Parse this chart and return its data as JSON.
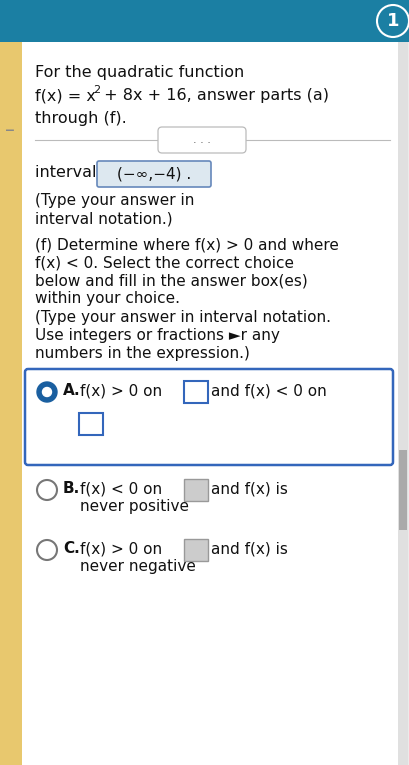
{
  "title_line1": "For the quadratic function",
  "title_line2a": "f(x) = x",
  "title_line2b": "2",
  "title_line2c": " + 8x + 16, answer parts (a)",
  "title_line3": "through (f).",
  "header_bg": "#1b7fa3",
  "page_bg": "#ebebeb",
  "content_bg": "#ffffff",
  "interval_label": "interval",
  "interval_value": "(−∞,−4) .",
  "interval_box_bg": "#dde8f0",
  "interval_box_border": "#6688bb",
  "type_answer_line1": "(Type your answer in",
  "type_answer_line2": "interval notation.)",
  "part_f_line1": "(f) Determine where f(x) > 0 and where",
  "part_f_line2": "f(x) < 0. Select the correct choice",
  "part_f_line3": "below and fill in the answer box(es)",
  "part_f_line4": "within your choice.",
  "type_note_line1": "(Type your answer in interval notation.",
  "type_note_line2": "Use integers or fractions ►◄r any",
  "type_note_line3": "numbers in the expression.)",
  "choice_A_text1": "f(x) > 0 on",
  "choice_A_text2": "and f(x) < 0 on",
  "choice_B_text1": "f(x) < 0 on",
  "choice_B_text2": "and f(x) is",
  "choice_B_text3": "never positive",
  "choice_C_text1": "f(x) > 0 on",
  "choice_C_text2": "and f(x) is",
  "choice_C_text3": "never negative",
  "selected_fill": "#1a5fa0",
  "selected_border": "#1a5fa0",
  "unselected_border": "#777777",
  "choice_A_box_border": "#3366bb",
  "choice_A_box_bg": "#ffffff",
  "choice_A_frame_border": "#3366bb",
  "choice_BC_box_border": "#999999",
  "choice_BC_box_bg": "#cccccc",
  "left_bar_color": "#e8c86e",
  "divider_color": "#bbbbbb",
  "dots_border": "#cccccc",
  "dots_text": "#555555",
  "text_color": "#111111",
  "top_right_num": "1",
  "scrollbar_color": "#aaaaaa",
  "scrollbar_bg": "#e0e0e0"
}
